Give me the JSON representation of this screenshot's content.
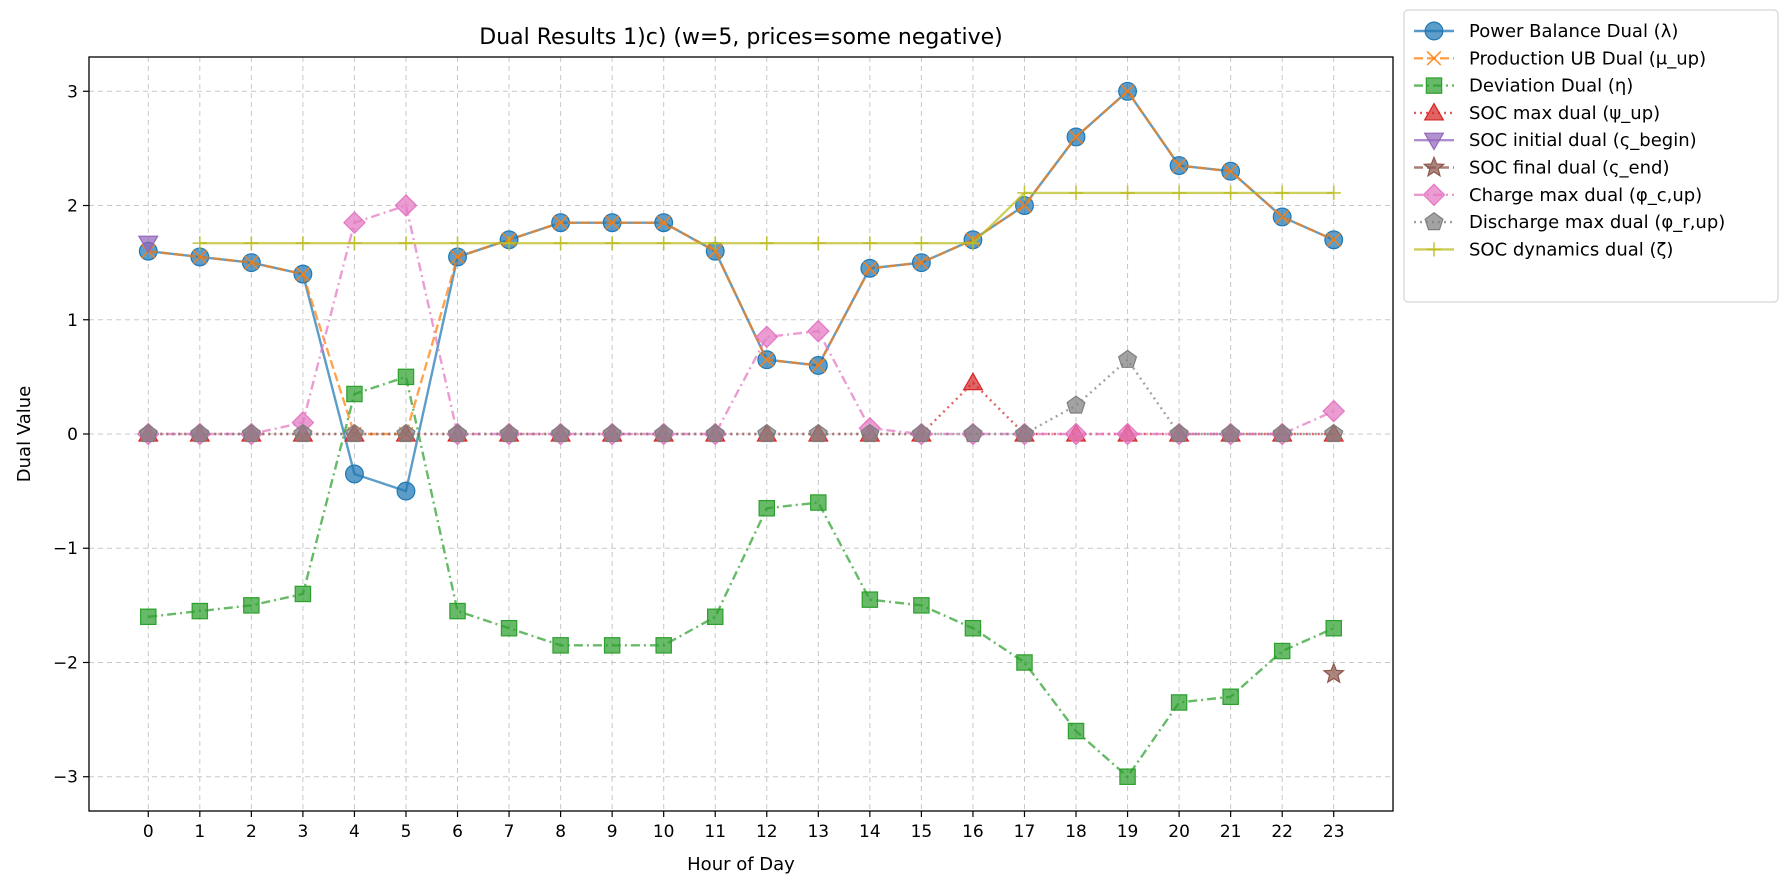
{
  "chart_data": {
    "type": "line",
    "title": "Dual Results 1)c) (w=5, prices=some negative)",
    "xlabel": "Hour of Day",
    "ylabel": "Dual Value",
    "x": [
      0,
      1,
      2,
      3,
      4,
      5,
      6,
      7,
      8,
      9,
      10,
      11,
      12,
      13,
      14,
      15,
      16,
      17,
      18,
      19,
      20,
      21,
      22,
      23
    ],
    "x_tick_labels": [
      "0",
      "1",
      "2",
      "3",
      "4",
      "5",
      "6",
      "7",
      "8",
      "9",
      "10",
      "11",
      "12",
      "13",
      "14",
      "15",
      "16",
      "17",
      "18",
      "19",
      "20",
      "21",
      "22",
      "23"
    ],
    "xlim": [
      -1.15,
      24.15
    ],
    "ylim": [
      -3.3,
      3.3
    ],
    "y_ticks": [
      -3,
      -2,
      -1,
      0,
      1,
      2,
      3
    ],
    "y_tick_labels": [
      "−3",
      "−2",
      "−1",
      "0",
      "1",
      "2",
      "3"
    ],
    "grid": true,
    "legend_position": "outside top-right",
    "series": [
      {
        "name": "Power Balance Dual (λ)",
        "color": "#1f77b4",
        "marker": "circle",
        "linestyle": "solid",
        "values": [
          1.6,
          1.55,
          1.5,
          1.4,
          -0.35,
          -0.5,
          1.55,
          1.7,
          1.85,
          1.85,
          1.85,
          1.6,
          0.65,
          0.6,
          1.45,
          1.5,
          1.7,
          2.0,
          2.6,
          3.0,
          2.35,
          2.3,
          1.9,
          1.7
        ]
      },
      {
        "name": "Production UB Dual (μ_up)",
        "color": "#ff7f0e",
        "marker": "x",
        "linestyle": "dashed",
        "values": [
          1.6,
          1.55,
          1.5,
          1.4,
          0,
          0,
          1.55,
          1.7,
          1.85,
          1.85,
          1.85,
          1.6,
          0.65,
          0.6,
          1.45,
          1.5,
          1.7,
          2.0,
          2.6,
          3.0,
          2.35,
          2.3,
          1.9,
          1.7
        ]
      },
      {
        "name": "Deviation Dual (η)",
        "color": "#2ca02c",
        "marker": "square",
        "linestyle": "dashdot",
        "values": [
          -1.6,
          -1.55,
          -1.5,
          -1.4,
          0.35,
          0.5,
          -1.55,
          -1.7,
          -1.85,
          -1.85,
          -1.85,
          -1.6,
          -0.65,
          -0.6,
          -1.45,
          -1.5,
          -1.7,
          -2.0,
          -2.6,
          -3.0,
          -2.35,
          -2.3,
          -1.9,
          -1.7
        ]
      },
      {
        "name": "SOC max dual (ψ_up)",
        "color": "#d62728",
        "marker": "triangle-up",
        "linestyle": "dotted",
        "values": [
          0,
          0,
          0,
          0,
          0,
          0,
          0,
          0,
          0,
          0,
          0,
          0,
          0,
          0,
          0,
          0,
          0.45,
          0,
          0,
          0,
          0,
          0,
          0,
          0
        ]
      },
      {
        "name": "SOC initial dual (ς_begin)",
        "color": "#9467bd",
        "marker": "triangle-down",
        "linestyle": "solid",
        "values": [
          1.67,
          null,
          null,
          null,
          null,
          null,
          null,
          null,
          null,
          null,
          null,
          null,
          null,
          null,
          null,
          null,
          null,
          null,
          null,
          null,
          null,
          null,
          null,
          null
        ]
      },
      {
        "name": "SOC final dual (ς_end)",
        "color": "#8c564b",
        "marker": "star",
        "linestyle": "dashed",
        "values": [
          null,
          null,
          null,
          null,
          null,
          null,
          null,
          null,
          null,
          null,
          null,
          null,
          null,
          null,
          null,
          null,
          null,
          null,
          null,
          null,
          null,
          null,
          null,
          -2.1
        ]
      },
      {
        "name": "Charge max dual (φ_c,up)",
        "color": "#e377c2",
        "marker": "diamond",
        "linestyle": "dashdot",
        "values": [
          0,
          0,
          0,
          0.1,
          1.85,
          2.0,
          0,
          0,
          0,
          0,
          0,
          0,
          0.85,
          0.9,
          0.05,
          0,
          0,
          0,
          0,
          0,
          0,
          0,
          0,
          0.2
        ]
      },
      {
        "name": "Discharge max dual (φ_r,up)",
        "color": "#7f7f7f",
        "marker": "pentagon",
        "linestyle": "dotted",
        "values": [
          0,
          0,
          0,
          0,
          0,
          0,
          0,
          0,
          0,
          0,
          0,
          0,
          0,
          0,
          0,
          0,
          0,
          0,
          0.25,
          0.65,
          0,
          0,
          0,
          0
        ]
      },
      {
        "name": "SOC dynamics dual (ζ)",
        "color": "#bcbd22",
        "marker": "plus",
        "linestyle": "solid",
        "values": [
          null,
          1.67,
          1.67,
          1.67,
          1.67,
          1.67,
          1.67,
          1.67,
          1.67,
          1.67,
          1.67,
          1.67,
          1.67,
          1.67,
          1.67,
          1.67,
          1.67,
          2.11,
          2.11,
          2.11,
          2.11,
          2.11,
          2.11,
          2.11
        ]
      }
    ]
  }
}
